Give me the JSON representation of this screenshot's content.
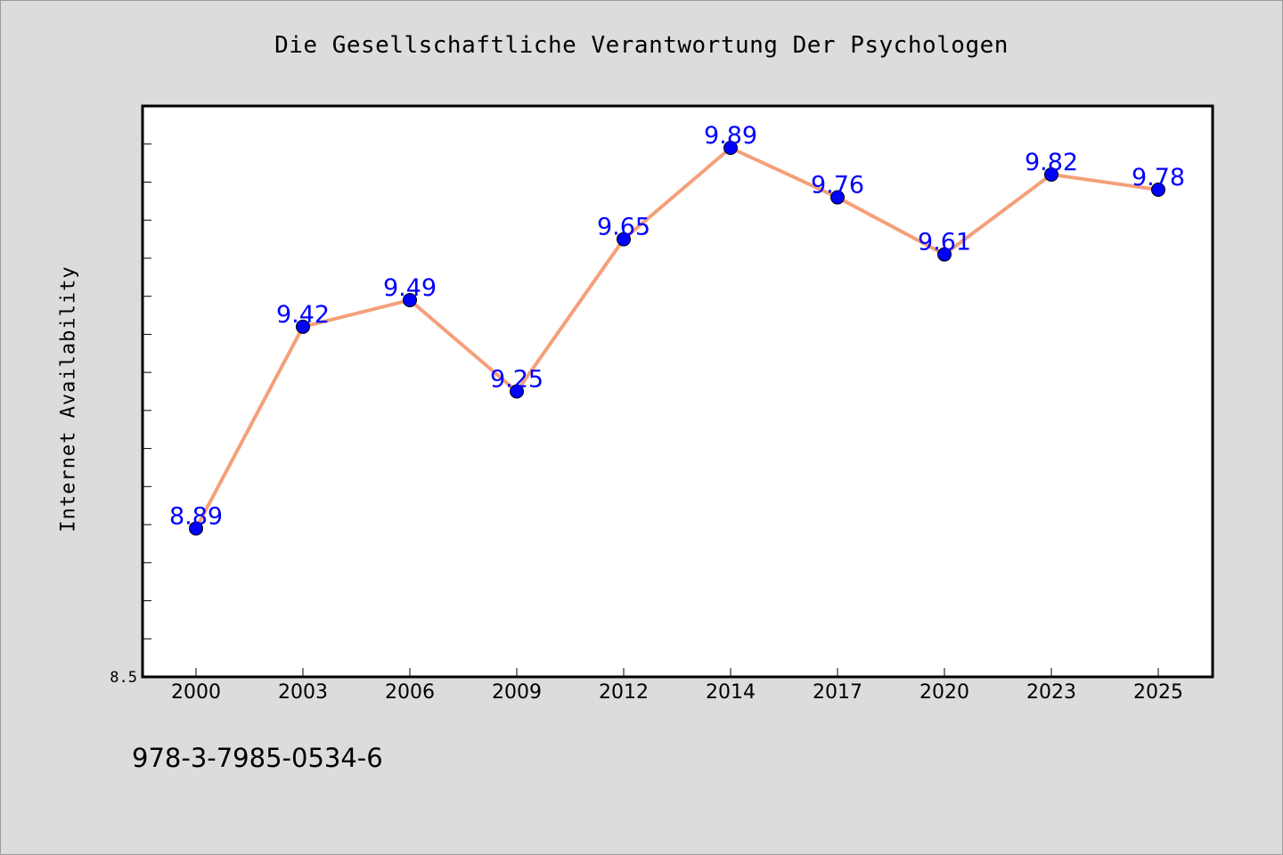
{
  "chart_data": {
    "type": "line",
    "title": "Die Gesellschaftliche Verantwortung Der Psychologen",
    "xlabel": "",
    "ylabel": "Internet Availability",
    "categories": [
      "2000",
      "2003",
      "2006",
      "2009",
      "2012",
      "2014",
      "2017",
      "2020",
      "2023",
      "2025"
    ],
    "series": [
      {
        "values": [
          8.89,
          9.42,
          9.49,
          9.25,
          9.65,
          9.89,
          9.76,
          9.61,
          9.82,
          9.78
        ]
      }
    ],
    "data_labels": [
      "8.89",
      "9.42",
      "9.49",
      "9.25",
      "9.65",
      "9.89",
      "9.76",
      "9.61",
      "9.82",
      "9.78"
    ],
    "ylim": [
      8.5,
      10.0
    ],
    "y_tick_step": 0.1,
    "y_tick_labels": [
      "8.5"
    ],
    "grid": false,
    "colors": {
      "line": "#f4a07a",
      "marker": "#0000ff",
      "data_label": "#0000ff"
    }
  },
  "footer": {
    "code": "978-3-7985-0534-6"
  }
}
